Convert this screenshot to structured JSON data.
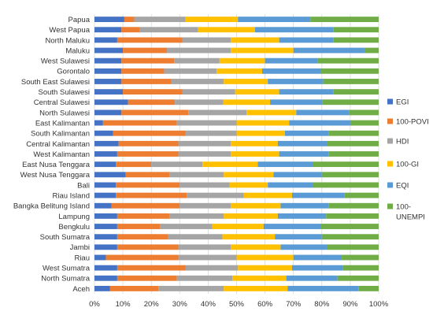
{
  "chart_data": {
    "type": "bar",
    "orientation": "horizontal",
    "stacked": "percent",
    "xlim": [
      0,
      100
    ],
    "x_ticks": [
      "0%",
      "10%",
      "20%",
      "30%",
      "40%",
      "50%",
      "60%",
      "70%",
      "80%",
      "90%",
      "100%"
    ],
    "grid": "vertical",
    "legend_position": "right",
    "categories": [
      "Papua",
      "West Papua",
      "North Maluku",
      "Maluku",
      "West Sulawesi",
      "Gorontalo",
      "South East Sulawesi",
      "South Sulawesi",
      "Central Sulawesi",
      "North Sulawesi",
      "East Kalimantan",
      "South Kalimantan",
      "Central Kalimantan",
      "West Kalimantan",
      "East Nusa Tenggara",
      "West Nusa Tenggara",
      "Bali",
      "Riau Island",
      "Bangka Belitung Island",
      "Lampung",
      "Bengkulu",
      "South Sumatra",
      "Jambi",
      "Riau",
      "West Sumatra",
      "North Sumatra",
      "Aceh"
    ],
    "series": [
      {
        "name": "EGI",
        "color": "#4472C4",
        "values": [
          10.5,
          9.5,
          8,
          10,
          9.5,
          9.5,
          9.5,
          10,
          11.8,
          9.5,
          3,
          6.5,
          8.5,
          8,
          7.5,
          11,
          7.5,
          7.5,
          6,
          8,
          8,
          8,
          8,
          4,
          8,
          8,
          5.5
        ]
      },
      {
        "name": "100-POVI",
        "color": "#ED7D31",
        "values": [
          3.5,
          6.5,
          23,
          15.5,
          18.5,
          15,
          17.5,
          21,
          16.5,
          23.5,
          26,
          25.5,
          21,
          21.5,
          12.5,
          15.5,
          22.5,
          25,
          24,
          18.5,
          15,
          18,
          21.5,
          25.5,
          24,
          21,
          17
        ]
      },
      {
        "name": "HDI",
        "color": "#A5A5A5",
        "values": [
          18,
          20.5,
          17,
          22.5,
          16,
          18.5,
          18.5,
          18.5,
          17,
          20.5,
          21,
          18,
          18.5,
          18.5,
          18,
          19,
          17.5,
          20,
          18,
          19,
          18.5,
          19,
          18.5,
          20.5,
          18.5,
          19.5,
          23
        ]
      },
      {
        "name": "100-GI",
        "color": "#FFC000",
        "values": [
          18.5,
          20,
          17,
          22,
          16,
          16,
          15.5,
          15.5,
          16.5,
          17.5,
          18.5,
          17,
          16.5,
          17,
          19.5,
          17.5,
          13.5,
          17,
          17.5,
          19,
          18,
          18.5,
          17.5,
          20,
          19,
          19,
          22.5
        ]
      },
      {
        "name": "EQI",
        "color": "#5B9BD5",
        "values": [
          25.5,
          27.5,
          19,
          25,
          18.5,
          20.5,
          19.5,
          19,
          18.5,
          18.5,
          21.5,
          15.5,
          17.5,
          17.5,
          19.5,
          17,
          16,
          18.5,
          17,
          17,
          20,
          16.5,
          16.5,
          17,
          18,
          18,
          25
        ]
      },
      {
        "name": "100-UNEMPI",
        "color": "#70AD47",
        "values": [
          24,
          16,
          16,
          5,
          21.5,
          20.5,
          19.5,
          16,
          19.7,
          10.5,
          10,
          17.5,
          18,
          17.5,
          23,
          20,
          23,
          12,
          17.5,
          18.5,
          20.5,
          20,
          18,
          13,
          12.5,
          14.5,
          7
        ]
      }
    ]
  }
}
